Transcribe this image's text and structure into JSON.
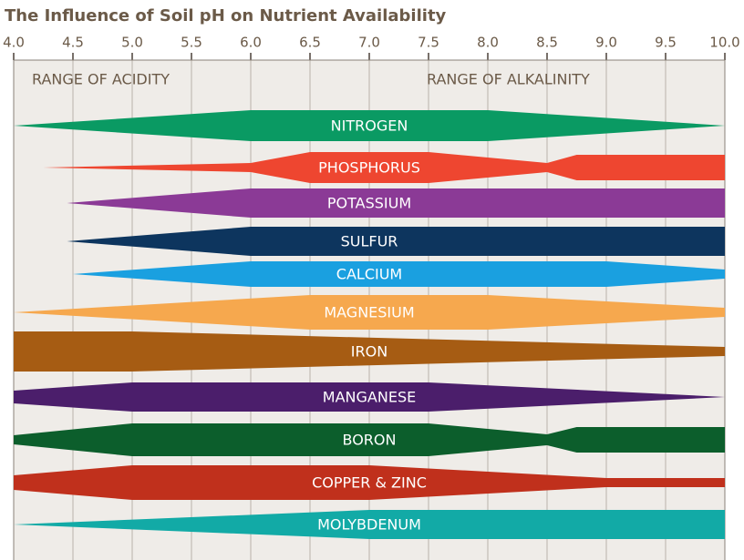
{
  "chart_data": {
    "type": "band",
    "title": "The Influence of Soil pH on Nutrient Availability",
    "annotations": [
      "RANGE OF ACIDITY",
      "RANGE OF ALKALINITY"
    ],
    "xlim": [
      4,
      10
    ],
    "xticks": [
      {
        "value": 4,
        "label": "4.0"
      },
      4.5,
      {
        "value": 5,
        "label": "5.0"
      },
      5.5,
      {
        "value": 6,
        "label": "6.0"
      },
      6.5,
      {
        "value": 7,
        "label": "7.0"
      },
      7.5,
      {
        "value": 8,
        "label": "8.0"
      },
      8.5,
      {
        "value": 9,
        "label": "9.0"
      },
      9.5,
      {
        "value": 10,
        "label": "10.0"
      }
    ],
    "grid": true,
    "series": [
      {
        "name": "NITROGEN",
        "color": "#0a9a63",
        "x": [
          4,
          6,
          8,
          10
        ],
        "values": [
          0,
          34,
          34,
          0
        ]
      },
      {
        "name": "PHOSPHORUS",
        "color": "#ee4630",
        "x": [
          4.25,
          6,
          6.5,
          7.5,
          8.5,
          8.75,
          10
        ],
        "values": [
          0,
          10,
          34,
          34,
          10,
          28,
          28
        ]
      },
      {
        "name": "POTASSIUM",
        "color": "#8b3a96",
        "x": [
          4.45,
          6,
          10
        ],
        "values": [
          0,
          32,
          32
        ]
      },
      {
        "name": "SULFUR",
        "color": "#0d355e",
        "x": [
          4.45,
          6,
          10
        ],
        "values": [
          0,
          32,
          32
        ]
      },
      {
        "name": "CALCIUM",
        "color": "#1aa0e0",
        "x": [
          4.5,
          6,
          9,
          10
        ],
        "values": [
          0,
          28,
          28,
          10
        ]
      },
      {
        "name": "MAGNESIUM",
        "color": "#f6a84e",
        "x": [
          4,
          6.5,
          8,
          10
        ],
        "values": [
          0,
          38,
          38,
          10
        ]
      },
      {
        "name": "IRON",
        "color": "#a65c13",
        "x": [
          4,
          5,
          10
        ],
        "values": [
          44,
          44,
          10
        ]
      },
      {
        "name": "MANGANESE",
        "color": "#4b1e6b",
        "x": [
          4,
          5,
          7.5,
          10
        ],
        "values": [
          14,
          32,
          32,
          0
        ]
      },
      {
        "name": "BORON",
        "color": "#0c5e2c",
        "x": [
          4,
          5,
          7.5,
          8.5,
          8.75,
          10
        ],
        "values": [
          10,
          36,
          36,
          12,
          28,
          28
        ]
      },
      {
        "name": "COPPER & ZINC",
        "color": "#c0301c",
        "x": [
          4,
          5,
          7,
          9,
          10
        ],
        "values": [
          16,
          38,
          38,
          10,
          10
        ]
      },
      {
        "name": "MOLYBDENUM",
        "color": "#12aaa6",
        "x": [
          4,
          7,
          10
        ],
        "values": [
          0,
          32,
          32
        ]
      }
    ]
  }
}
